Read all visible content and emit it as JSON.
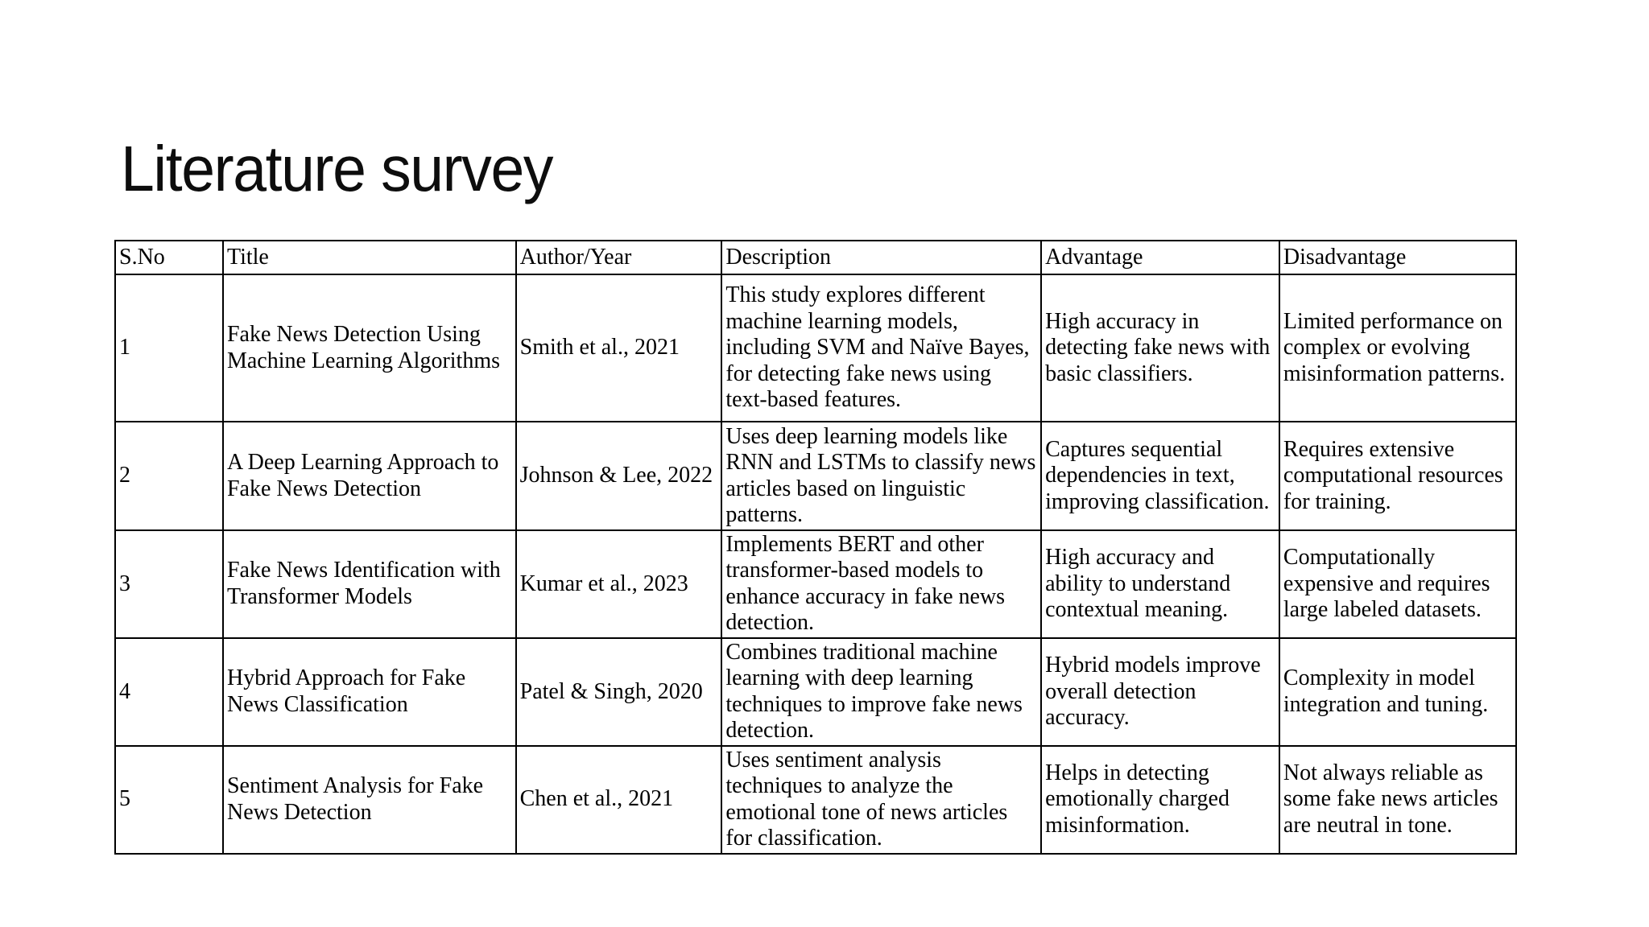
{
  "slide": {
    "title": "Literature survey"
  },
  "colors": {
    "background": "#ffffff",
    "text": "#000000",
    "border": "#000000",
    "title_text": "#0d0d0d"
  },
  "table": {
    "headers": {
      "sno": "S.No",
      "title": "Title",
      "author_year": "Author/Year",
      "description": "Description",
      "advantage": "Advantage",
      "disadvantage": "Disadvantage"
    },
    "rows": [
      {
        "sno": "1",
        "title": "Fake News Detection Using Machine Learning Algorithms",
        "author_year": "Smith et al., 2021",
        "description": "This study explores different machine learning models, including SVM and Naïve Bayes, for detecting fake news using text-based features.",
        "advantage": "High accuracy in detecting fake news with basic classifiers.",
        "disadvantage": "Limited performance on complex or evolving misinformation patterns."
      },
      {
        "sno": "2",
        "title": "A Deep Learning Approach to Fake News Detection",
        "author_year": "Johnson & Lee, 2022",
        "description": "Uses deep learning models like RNN and LSTMs to classify news articles based on linguistic patterns.",
        "advantage": "Captures sequential dependencies in text, improving classification.",
        "disadvantage": "Requires extensive computational resources for training."
      },
      {
        "sno": "3",
        "title": "Fake News Identification with Transformer Models",
        "author_year": "Kumar et al., 2023",
        "description": "Implements BERT and other transformer-based models to enhance accuracy in fake news detection.",
        "advantage": "High accuracy and ability to understand contextual meaning.",
        "disadvantage": "Computationally expensive and requires large labeled datasets."
      },
      {
        "sno": "4",
        "title": "Hybrid Approach for Fake News Classification",
        "author_year": "Patel & Singh, 2020",
        "description": "Combines traditional machine learning with deep learning techniques to improve fake news detection.",
        "advantage": "Hybrid models improve overall detection accuracy.",
        "disadvantage": "Complexity in model integration and tuning."
      },
      {
        "sno": "5",
        "title": "Sentiment Analysis for Fake News Detection",
        "author_year": "Chen et al., 2021",
        "description": "Uses sentiment analysis techniques to analyze the emotional tone of news articles for classification.",
        "advantage": "Helps in detecting emotionally charged misinformation.",
        "disadvantage": "Not always reliable as some fake news articles are neutral in tone."
      }
    ]
  }
}
